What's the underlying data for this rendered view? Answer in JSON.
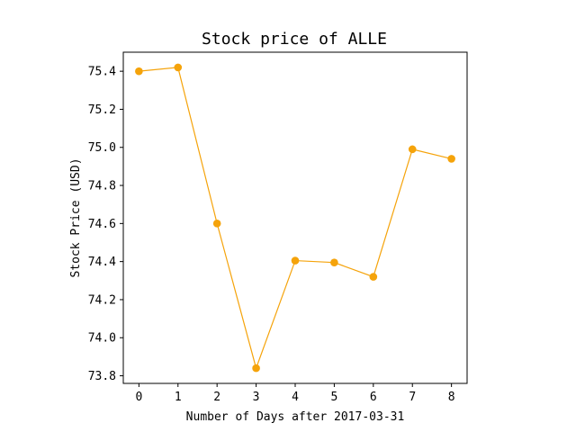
{
  "chart_data": {
    "type": "line",
    "title": "Stock price of ALLE",
    "xlabel": "Number of Days after 2017-03-31",
    "ylabel": "Stock Price (USD)",
    "x": [
      0,
      1,
      2,
      3,
      4,
      5,
      6,
      7,
      8
    ],
    "series": [
      {
        "values": [
          75.4,
          75.42,
          74.6,
          73.84,
          74.405,
          74.395,
          74.32,
          74.99,
          74.94
        ]
      }
    ],
    "xticks": [
      0,
      1,
      2,
      3,
      4,
      5,
      6,
      7,
      8
    ],
    "yticks": [
      73.8,
      74.0,
      74.2,
      74.4,
      74.6,
      74.8,
      75.0,
      75.2,
      75.4
    ],
    "xlim": [
      -0.4,
      8.4
    ],
    "ylim": [
      73.76,
      75.5
    ],
    "grid": false,
    "colors": {
      "line": "#f5a30a",
      "marker": "#f5a30a",
      "axes": "#000000"
    }
  }
}
